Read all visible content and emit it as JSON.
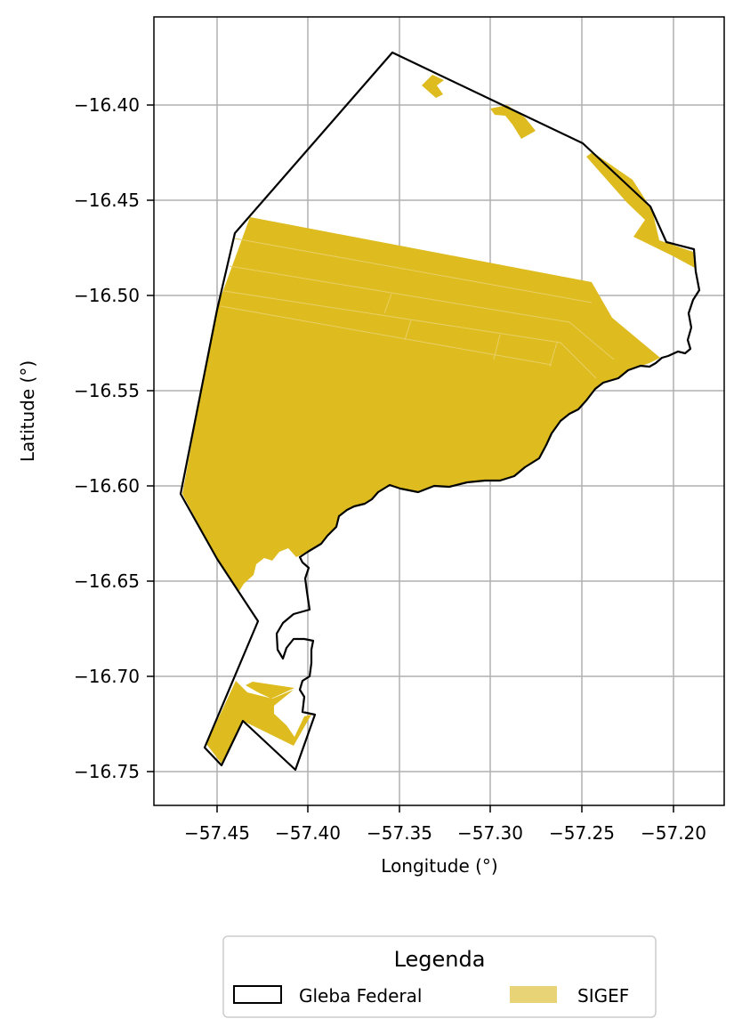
{
  "map": {
    "xlabel": "Longitude (°)",
    "ylabel": "Latitude (°)",
    "x_ticks": [
      "−57.45",
      "−57.40",
      "−57.35",
      "−57.30",
      "−57.25",
      "−57.20"
    ],
    "x_tick_values": [
      -57.45,
      -57.4,
      -57.35,
      -57.3,
      -57.25,
      -57.2
    ],
    "y_ticks": [
      "−16.40",
      "−16.45",
      "−16.50",
      "−16.55",
      "−16.60",
      "−16.65",
      "−16.70",
      "−16.75"
    ],
    "y_tick_values": [
      -16.4,
      -16.45,
      -16.5,
      -16.55,
      -16.6,
      -16.65,
      -16.7,
      -16.75
    ],
    "xlim": [
      -57.484,
      -57.171
    ],
    "ylim": [
      -16.769,
      -16.354
    ],
    "grid": true,
    "colors": {
      "sigef_fill": "#DEBC20",
      "sigef_legend": "#E8D477",
      "boundary": "#000000",
      "grid": "#B0B0B0"
    },
    "legend": {
      "title": "Legenda",
      "placement": "bottom-center",
      "items": [
        {
          "label": "Gleba Federal",
          "style": "outline"
        },
        {
          "label": "SIGEF",
          "style": "fill"
        }
      ]
    }
  }
}
